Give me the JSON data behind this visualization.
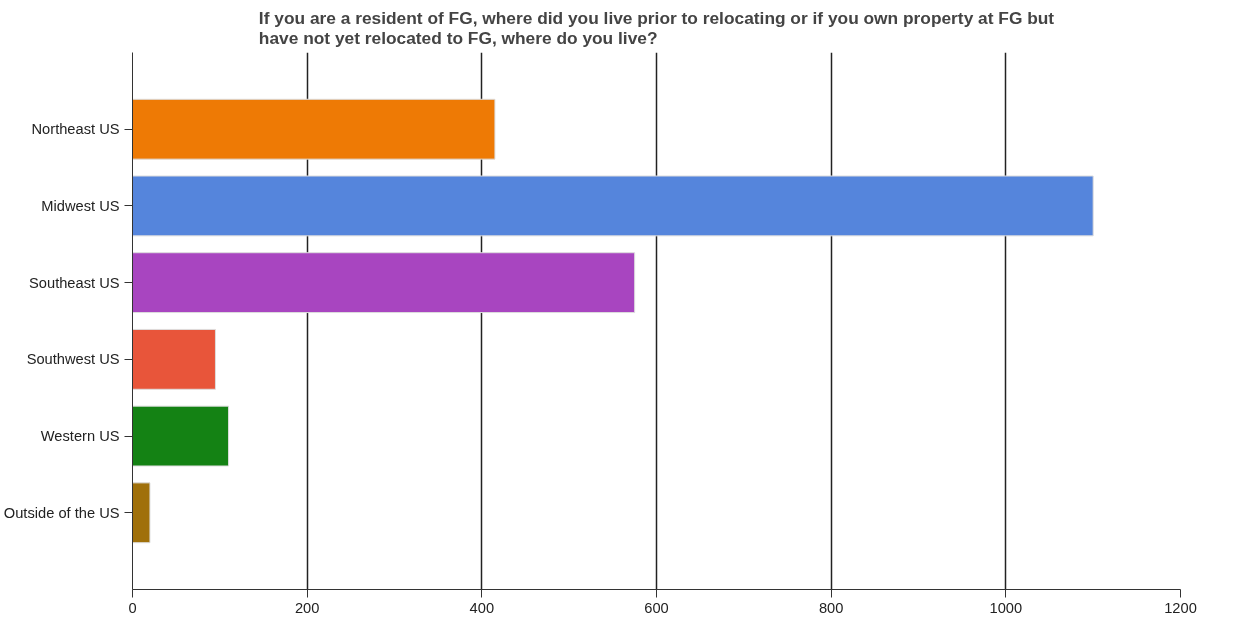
{
  "chart_data": {
    "type": "bar",
    "orientation": "horizontal",
    "title": "If you are a resident of FG, where did you live prior to relocating or if you own property at FG but\nhave not yet relocated to FG, where do you live?",
    "categories": [
      "Northeast US",
      "Midwest US",
      "Southeast US",
      "Southwest US",
      "Western US",
      "Outside of the US"
    ],
    "values": [
      415,
      1100,
      575,
      95,
      110,
      20
    ],
    "colors": [
      "#ee7a05",
      "#5585dc",
      "#a845c0",
      "#e8553a",
      "#148214",
      "#a0700a"
    ],
    "xlim": [
      0,
      1200
    ],
    "xticks": [
      0,
      200,
      400,
      600,
      800,
      1000,
      1200
    ],
    "grid": "x"
  }
}
